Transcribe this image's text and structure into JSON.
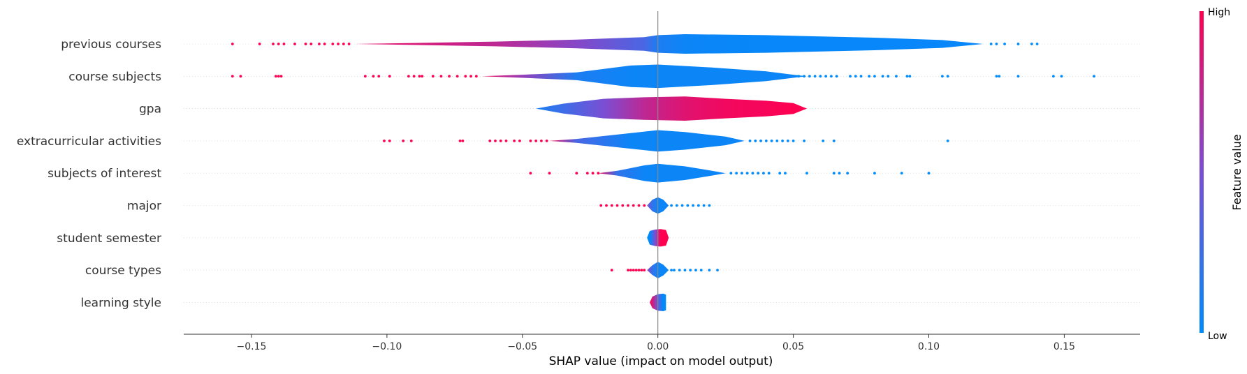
{
  "chart_data": {
    "type": "violin",
    "xlabel": "SHAP value (impact on model output)",
    "xlim": [
      -0.175,
      0.178
    ],
    "xticks": [
      -0.15,
      -0.1,
      -0.05,
      0.0,
      0.05,
      0.1,
      0.15
    ],
    "xtick_labels": [
      "−0.15",
      "−0.10",
      "−0.05",
      "0.00",
      "0.05",
      "0.10",
      "0.15"
    ],
    "colorbar": {
      "title": "Feature value",
      "high_label": "High",
      "low_label": "Low",
      "high_color": "#ff0051",
      "low_color": "#008bfb"
    },
    "features": [
      {
        "name": "previous courses",
        "body": [
          [
            -0.112,
            0.0,
            0.9
          ],
          [
            -0.09,
            0.05,
            0.85
          ],
          [
            -0.06,
            0.12,
            0.75
          ],
          [
            -0.03,
            0.22,
            0.55
          ],
          [
            -0.005,
            0.35,
            0.3
          ],
          [
            0.0,
            0.45,
            0.12
          ],
          [
            0.01,
            0.5,
            0.05
          ],
          [
            0.04,
            0.45,
            0.03
          ],
          [
            0.08,
            0.32,
            0.03
          ],
          [
            0.105,
            0.2,
            0.03
          ],
          [
            0.12,
            0.0,
            0.03
          ]
        ],
        "outliers_high": [
          -0.157,
          -0.147,
          -0.142,
          -0.14,
          -0.138,
          -0.134,
          -0.13,
          -0.128,
          -0.125,
          -0.123,
          -0.12,
          -0.118,
          -0.116,
          -0.114
        ],
        "outliers_low": [
          0.123,
          0.125,
          0.128,
          0.133,
          0.138,
          0.14
        ]
      },
      {
        "name": "course subjects",
        "body": [
          [
            -0.065,
            0.0,
            0.95
          ],
          [
            -0.05,
            0.08,
            0.6
          ],
          [
            -0.03,
            0.2,
            0.12
          ],
          [
            -0.01,
            0.55,
            0.05
          ],
          [
            0.0,
            0.6,
            0.05
          ],
          [
            0.02,
            0.45,
            0.05
          ],
          [
            0.04,
            0.25,
            0.05
          ],
          [
            0.05,
            0.08,
            0.05
          ],
          [
            0.055,
            0.0,
            0.05
          ]
        ],
        "outliers_high": [
          -0.157,
          -0.154,
          -0.141,
          -0.14,
          -0.139,
          -0.108,
          -0.105,
          -0.103,
          -0.099,
          -0.092,
          -0.09,
          -0.088,
          -0.087,
          -0.083,
          -0.08,
          -0.077,
          -0.074,
          -0.071,
          -0.069,
          -0.067
        ],
        "outliers_low": [
          0.052,
          0.054,
          0.056,
          0.058,
          0.06,
          0.062,
          0.064,
          0.066,
          0.071,
          0.073,
          0.075,
          0.078,
          0.08,
          0.083,
          0.085,
          0.088,
          0.092,
          0.093,
          0.105,
          0.107,
          0.125,
          0.126,
          0.133,
          0.146,
          0.149,
          0.161
        ]
      },
      {
        "name": "gpa",
        "body": [
          [
            -0.045,
            0.0,
            0.1
          ],
          [
            -0.035,
            0.25,
            0.25
          ],
          [
            -0.02,
            0.5,
            0.5
          ],
          [
            -0.005,
            0.58,
            0.75
          ],
          [
            0.01,
            0.62,
            0.88
          ],
          [
            0.025,
            0.5,
            0.95
          ],
          [
            0.04,
            0.4,
            0.97
          ],
          [
            0.05,
            0.28,
            1.0
          ],
          [
            0.055,
            0.0,
            1.0
          ]
        ],
        "outliers_high": [],
        "outliers_low": []
      },
      {
        "name": "extracurricular activities",
        "body": [
          [
            -0.04,
            0.0,
            0.95
          ],
          [
            -0.03,
            0.1,
            0.3
          ],
          [
            -0.01,
            0.4,
            0.05
          ],
          [
            0.0,
            0.55,
            0.05
          ],
          [
            0.01,
            0.45,
            0.05
          ],
          [
            0.025,
            0.22,
            0.05
          ],
          [
            0.032,
            0.0,
            0.05
          ]
        ],
        "outliers_high": [
          -0.101,
          -0.099,
          -0.094,
          -0.091,
          -0.073,
          -0.072,
          -0.062,
          -0.06,
          -0.058,
          -0.056,
          -0.053,
          -0.051,
          -0.047,
          -0.045,
          -0.043,
          -0.041
        ],
        "outliers_low": [
          0.034,
          0.036,
          0.038,
          0.04,
          0.042,
          0.044,
          0.046,
          0.048,
          0.05,
          0.054,
          0.061,
          0.065,
          0.107
        ]
      },
      {
        "name": "subjects of interest",
        "body": [
          [
            -0.022,
            0.0,
            0.95
          ],
          [
            -0.015,
            0.12,
            0.2
          ],
          [
            -0.005,
            0.4,
            0.05
          ],
          [
            0.0,
            0.48,
            0.05
          ],
          [
            0.01,
            0.35,
            0.05
          ],
          [
            0.02,
            0.12,
            0.05
          ],
          [
            0.025,
            0.0,
            0.05
          ]
        ],
        "outliers_high": [
          -0.047,
          -0.04,
          -0.03,
          -0.026,
          -0.024,
          -0.022
        ],
        "outliers_low": [
          0.027,
          0.029,
          0.031,
          0.033,
          0.035,
          0.037,
          0.039,
          0.041,
          0.045,
          0.047,
          0.055,
          0.065,
          0.067,
          0.07,
          0.08,
          0.09,
          0.1
        ]
      },
      {
        "name": "major",
        "body": [
          [
            -0.004,
            0.0,
            0.5
          ],
          [
            -0.002,
            0.3,
            0.2
          ],
          [
            0.0,
            0.42,
            0.05
          ],
          [
            0.002,
            0.3,
            0.05
          ],
          [
            0.004,
            0.0,
            0.05
          ]
        ],
        "outliers_high": [
          -0.021,
          -0.019,
          -0.017,
          -0.015,
          -0.013,
          -0.011,
          -0.009,
          -0.007,
          -0.005
        ],
        "outliers_low": [
          0.005,
          0.007,
          0.009,
          0.011,
          0.013,
          0.015,
          0.017,
          0.019
        ]
      },
      {
        "name": "student semester",
        "body": [
          [
            -0.004,
            0.0,
            0.0
          ],
          [
            -0.003,
            0.35,
            0.0
          ],
          [
            -0.001,
            0.42,
            0.5
          ],
          [
            0.001,
            0.45,
            1.0
          ],
          [
            0.003,
            0.4,
            1.0
          ],
          [
            0.004,
            0.0,
            1.0
          ]
        ],
        "outliers_high": [],
        "outliers_low": []
      },
      {
        "name": "course types",
        "body": [
          [
            -0.004,
            0.0,
            0.6
          ],
          [
            -0.002,
            0.25,
            0.2
          ],
          [
            0.0,
            0.42,
            0.05
          ],
          [
            0.002,
            0.28,
            0.05
          ],
          [
            0.004,
            0.0,
            0.05
          ]
        ],
        "outliers_high": [
          -0.017,
          -0.011,
          -0.01,
          -0.009,
          -0.008,
          -0.007,
          -0.006,
          -0.005
        ],
        "outliers_low": [
          0.005,
          0.006,
          0.008,
          0.01,
          0.012,
          0.014,
          0.016,
          0.019,
          0.022
        ]
      },
      {
        "name": "learning style",
        "body": [
          [
            -0.003,
            0.0,
            0.95
          ],
          [
            -0.002,
            0.3,
            0.85
          ],
          [
            0.0,
            0.42,
            0.4
          ],
          [
            0.002,
            0.45,
            0.0
          ],
          [
            0.003,
            0.4,
            0.0
          ],
          [
            0.003,
            0.0,
            0.0
          ]
        ],
        "outliers_high": [],
        "outliers_low": []
      }
    ]
  }
}
